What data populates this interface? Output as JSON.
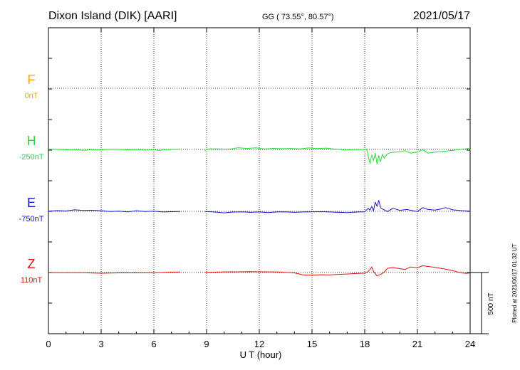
{
  "header": {
    "station": "Dixon Island (DIK)  [AARI]",
    "coords": "GG ( 73.55°,  80.57°)",
    "date": "2021/05/17"
  },
  "scale_label": "500 nT",
  "plotted_note": "Plotted at 2021/06/17 01:32 UT",
  "colors": {
    "F": "#f5a800",
    "H": "#22e030",
    "E": "#1414c8",
    "Z": "#e01010",
    "frame": "#000000",
    "grid": "#000000"
  },
  "chart_data": {
    "type": "line",
    "xlabel": "U T (hour)",
    "xlim": [
      0,
      24
    ],
    "xticks": [
      "0",
      "3",
      "6",
      "9",
      "12",
      "15",
      "18",
      "21",
      "24"
    ],
    "grid": true,
    "nT_per_scale_bar": 500,
    "series": [
      {
        "name": "F",
        "baseline_label": "0nT",
        "points": []
      },
      {
        "name": "H",
        "baseline_label": "-250nT",
        "points": [
          [
            0,
            1
          ],
          [
            0.5,
            0
          ],
          [
            1.0,
            -3
          ],
          [
            1.5,
            -1
          ],
          [
            2.0,
            -7
          ],
          [
            2.5,
            -2
          ],
          [
            3.0,
            -4
          ],
          [
            3.5,
            2
          ],
          [
            4.0,
            0
          ],
          [
            4.5,
            -3
          ],
          [
            5.0,
            -1
          ],
          [
            5.5,
            -6
          ],
          [
            6.0,
            -2
          ],
          [
            6.3,
            -8
          ],
          [
            6.7,
            -1
          ],
          [
            7.0,
            -2
          ],
          [
            7.5,
            1
          ],
          [
            null,
            null
          ],
          [
            8.9,
            -8
          ],
          [
            9.2,
            5
          ],
          [
            9.8,
            4
          ],
          [
            10.3,
            2
          ],
          [
            10.8,
            14
          ],
          [
            11.3,
            8
          ],
          [
            11.8,
            13
          ],
          [
            12.3,
            4
          ],
          [
            12.8,
            9
          ],
          [
            13.3,
            6
          ],
          [
            13.8,
            8
          ],
          [
            14.3,
            4
          ],
          [
            14.8,
            12
          ],
          [
            15.3,
            7
          ],
          [
            15.8,
            11
          ],
          [
            16.3,
            3
          ],
          [
            16.8,
            -4
          ],
          [
            17.3,
            -2
          ],
          [
            17.8,
            -1
          ],
          [
            18.1,
            0
          ],
          [
            18.2,
            -55
          ],
          [
            18.3,
            -115
          ],
          [
            18.4,
            -45
          ],
          [
            18.5,
            -90
          ],
          [
            18.6,
            -30
          ],
          [
            18.7,
            -120
          ],
          [
            18.8,
            -50
          ],
          [
            18.9,
            -100
          ],
          [
            19.0,
            -40
          ],
          [
            19.1,
            -70
          ],
          [
            19.3,
            -35
          ],
          [
            19.5,
            -25
          ],
          [
            20.0,
            -20
          ],
          [
            20.3,
            -10
          ],
          [
            20.6,
            -30
          ],
          [
            21.0,
            -22
          ],
          [
            21.3,
            -2
          ],
          [
            21.6,
            -30
          ],
          [
            22.0,
            -22
          ],
          [
            22.5,
            -15
          ],
          [
            23.0,
            -8
          ],
          [
            23.5,
            0
          ],
          [
            24.0,
            10
          ]
        ]
      },
      {
        "name": "E",
        "baseline_label": "-750nT",
        "points": [
          [
            0,
            2
          ],
          [
            0.5,
            6
          ],
          [
            1.0,
            3
          ],
          [
            1.5,
            12
          ],
          [
            2.0,
            7
          ],
          [
            2.5,
            9
          ],
          [
            3.0,
            5
          ],
          [
            3.5,
            -2
          ],
          [
            4.0,
            2
          ],
          [
            4.5,
            -4
          ],
          [
            5.0,
            4
          ],
          [
            5.5,
            -1
          ],
          [
            6.0,
            1
          ],
          [
            6.5,
            -5
          ],
          [
            7.0,
            -3
          ],
          [
            7.5,
            -1
          ],
          [
            null,
            null
          ],
          [
            8.9,
            -2
          ],
          [
            9.5,
            -6
          ],
          [
            10.0,
            -12
          ],
          [
            10.5,
            -6
          ],
          [
            11.0,
            -4
          ],
          [
            11.5,
            -8
          ],
          [
            12.0,
            -5
          ],
          [
            12.5,
            -10
          ],
          [
            13.0,
            -5
          ],
          [
            13.5,
            -4
          ],
          [
            14.0,
            -8
          ],
          [
            14.5,
            -5
          ],
          [
            15.0,
            -4
          ],
          [
            15.5,
            -3
          ],
          [
            16.0,
            -5
          ],
          [
            16.5,
            -8
          ],
          [
            17.0,
            -10
          ],
          [
            17.5,
            -6
          ],
          [
            18.0,
            -4
          ],
          [
            18.2,
            25
          ],
          [
            18.3,
            10
          ],
          [
            18.4,
            40
          ],
          [
            18.5,
            5
          ],
          [
            18.6,
            75
          ],
          [
            18.7,
            40
          ],
          [
            18.8,
            90
          ],
          [
            18.9,
            30
          ],
          [
            19.0,
            20
          ],
          [
            19.3,
            -2
          ],
          [
            19.6,
            25
          ],
          [
            20.0,
            8
          ],
          [
            20.4,
            15
          ],
          [
            20.8,
            3
          ],
          [
            21.0,
            -2
          ],
          [
            21.3,
            30
          ],
          [
            21.6,
            15
          ],
          [
            22.0,
            10
          ],
          [
            22.3,
            18
          ],
          [
            22.6,
            30
          ],
          [
            23.0,
            12
          ],
          [
            23.5,
            6
          ],
          [
            24.0,
            2
          ]
        ]
      },
      {
        "name": "Z",
        "baseline_label": "110nT",
        "points": [
          [
            0,
            -1
          ],
          [
            1.0,
            -1
          ],
          [
            2.0,
            -2
          ],
          [
            3.0,
            -6
          ],
          [
            4.0,
            -3
          ],
          [
            5.0,
            -3
          ],
          [
            6.0,
            -1
          ],
          [
            7.0,
            3
          ],
          [
            7.5,
            4
          ],
          [
            null,
            null
          ],
          [
            8.9,
            2
          ],
          [
            10.0,
            5
          ],
          [
            11.0,
            6
          ],
          [
            11.5,
            7
          ],
          [
            12.0,
            6
          ],
          [
            13.0,
            5
          ],
          [
            14.0,
            -3
          ],
          [
            14.5,
            -20
          ],
          [
            15.0,
            -22
          ],
          [
            15.5,
            -18
          ],
          [
            16.0,
            -20
          ],
          [
            16.5,
            -15
          ],
          [
            17.0,
            -12
          ],
          [
            17.5,
            -8
          ],
          [
            18.0,
            -5
          ],
          [
            18.2,
            8
          ],
          [
            18.3,
            25
          ],
          [
            18.4,
            45
          ],
          [
            18.5,
            10
          ],
          [
            18.7,
            -28
          ],
          [
            18.9,
            -15
          ],
          [
            19.1,
            2
          ],
          [
            19.3,
            35
          ],
          [
            19.6,
            40
          ],
          [
            20.0,
            32
          ],
          [
            20.3,
            25
          ],
          [
            20.6,
            45
          ],
          [
            21.0,
            40
          ],
          [
            21.3,
            55
          ],
          [
            21.6,
            50
          ],
          [
            22.0,
            42
          ],
          [
            22.5,
            30
          ],
          [
            23.0,
            15
          ],
          [
            23.5,
            -3
          ],
          [
            23.8,
            -7
          ],
          [
            24.0,
            -3
          ]
        ]
      }
    ]
  }
}
